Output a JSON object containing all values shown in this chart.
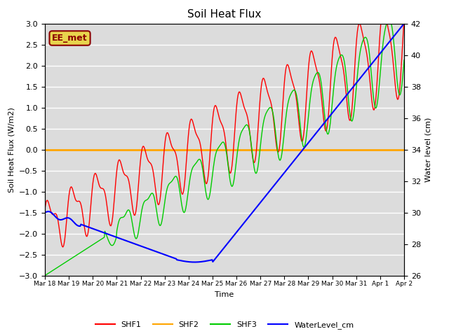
{
  "title": "Soil Heat Flux",
  "xlabel": "Time",
  "ylabel_left": "Soil Heat Flux (W/m2)",
  "ylabel_right": "Water level (cm)",
  "ylim_left": [
    -3.0,
    3.0
  ],
  "ylim_right": [
    26,
    42
  ],
  "yticks_left": [
    -3.0,
    -2.5,
    -2.0,
    -1.5,
    -1.0,
    -0.5,
    0.0,
    0.5,
    1.0,
    1.5,
    2.0,
    2.5,
    3.0
  ],
  "yticks_right": [
    26,
    28,
    30,
    32,
    34,
    36,
    38,
    40,
    42
  ],
  "background_color": "#dcdcdc",
  "grid_color": "#ffffff",
  "annotation_text": "EE_met",
  "annotation_color": "#8b0000",
  "annotation_bg": "#e8d44d",
  "legend_items": [
    "SHF1",
    "SHF2",
    "SHF3",
    "WaterLevel_cm"
  ],
  "legend_colors": [
    "#ff0000",
    "#ffa500",
    "#00cc00",
    "#0000ff"
  ],
  "xtick_labels": [
    "Mar 18",
    "Mar 19",
    "Mar 20",
    "Mar 21",
    "Mar 22",
    "Mar 23",
    "Mar 24",
    "Mar 25",
    "Mar 26",
    "Mar 27",
    "Mar 28",
    "Mar 29",
    "Mar 30",
    "Mar 31",
    "Apr 1",
    "Apr 2"
  ],
  "figsize": [
    6.4,
    4.8
  ],
  "dpi": 100
}
